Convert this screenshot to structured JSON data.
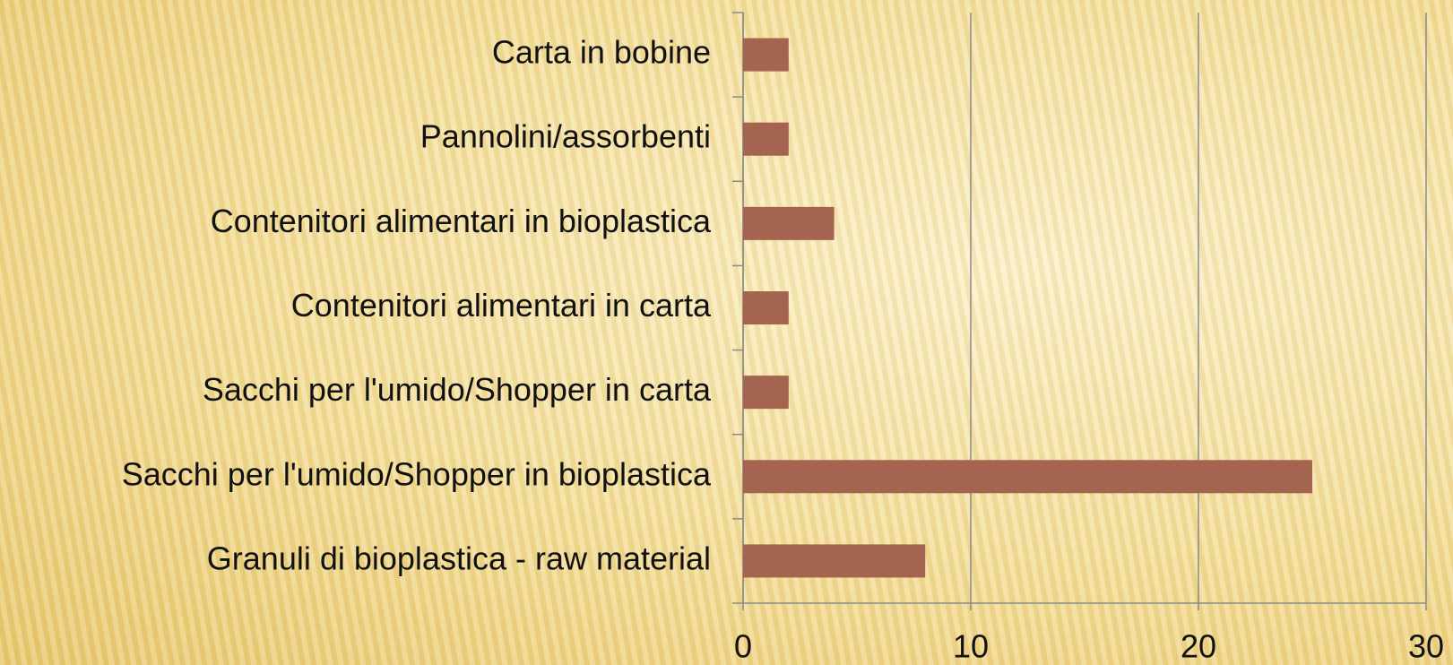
{
  "chart_data": {
    "type": "bar",
    "orientation": "horizontal",
    "categories": [
      "Carta in bobine",
      "Pannolini/assorbenti",
      "Contenitori alimentari in bioplastica",
      "Contenitori alimentari in carta",
      "Sacchi per l'umido/Shopper in carta",
      "Sacchi per l'umido/Shopper in bioplastica",
      "Granuli di bioplastica - raw material"
    ],
    "values": [
      2,
      2,
      4,
      2,
      2,
      25,
      8
    ],
    "color": "#a5644f",
    "xlim": [
      0,
      30
    ],
    "xticks": [
      0,
      10,
      20,
      30
    ],
    "grid": true
  }
}
